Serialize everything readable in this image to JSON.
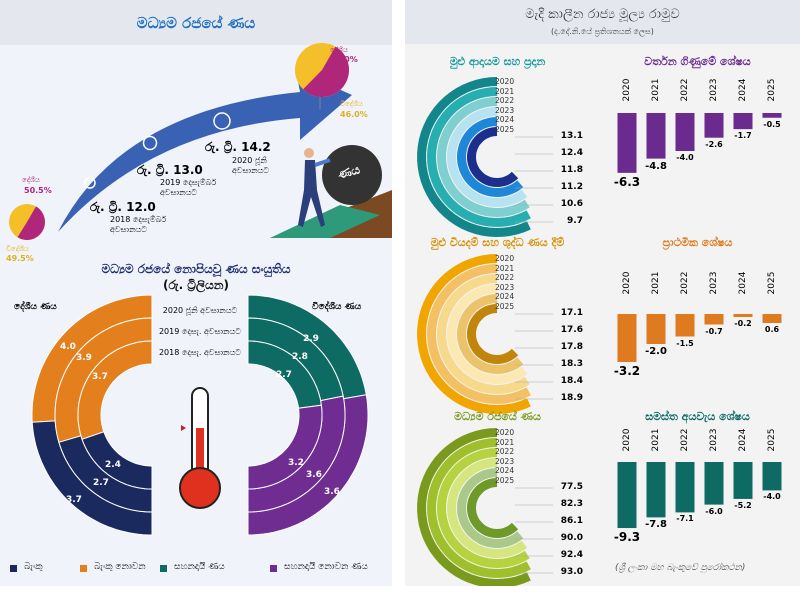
{
  "left": {
    "title": "මධ්‍යම රජයේ ණය",
    "pie_2018": {
      "domestic_label": "දේශීය",
      "domestic": "50.5%",
      "foreign_label": "විදේශීය",
      "foreign": "49.5%",
      "domestic_pct": 50.5
    },
    "pie_2020": {
      "domestic_label": "දේශීය",
      "domestic": "54.0%",
      "foreign_label": "විදේශීය",
      "foreign": "46.0%",
      "domestic_pct": 54.0
    },
    "milestones": [
      {
        "amount": "රු. ට්‍රි. 12.0",
        "date": "2018 දෙසැම්බර් අවසානයට"
      },
      {
        "amount": "රු. ට්‍රි. 13.0",
        "date": "2019 දෙසැම්බර් අවසානයට"
      },
      {
        "amount": "රු. ට්‍රි. 14.2",
        "date": "2020 ජූනි අවසානයට"
      }
    ],
    "boulder_text": "ණය",
    "composition": {
      "title": "මධ්‍යම රජයේ නොපියවූ ණය සංයුතිය",
      "subtitle": "(රු. ට්‍රිලියන)",
      "domestic_label": "දේශීය ණය",
      "foreign_label": "විදේශීය ණය",
      "periods": [
        "2020 ජූනි අවසානයට",
        "2019 දෙසැ. අවසානයට",
        "2018 දෙසැ. අවසානයට"
      ],
      "domestic": {
        "non_bank": [
          "4.0",
          "3.9",
          "3.7"
        ],
        "bank": [
          "3.7",
          "2.7",
          "2.4"
        ]
      },
      "foreign": {
        "concessional": [
          "2.9",
          "2.8",
          "2.7"
        ],
        "non_concessional": [
          "3.6",
          "3.6",
          "3.2"
        ]
      },
      "legend": [
        {
          "label": "බැංකු",
          "color": "#1b2a5e"
        },
        {
          "label": "බැංකු නොවන",
          "color": "#e37f1c"
        },
        {
          "label": "සහනදායී ණය",
          "color": "#0e6b63"
        },
        {
          "label": "සහනදායී නොවන ණය",
          "color": "#6f2c91"
        }
      ]
    }
  },
  "right": {
    "title": "මැදි කාලීන රාජ්‍ය මූල්‍ය රාමුව",
    "subtitle": "(ද.දේ.නි.යේ ප්‍රතිශතයක් ලෙස)",
    "source": "(ශ්‍රී ලංකා මහ බැංකුවේ පුරෝකථන)",
    "years": [
      "2020",
      "2021",
      "2022",
      "2023",
      "2024",
      "2025"
    ]
  },
  "chart_data": [
    {
      "type": "radial-bar",
      "title": "මුළු ආදායම සහ ප්‍රදාන",
      "categories": [
        "2020",
        "2021",
        "2022",
        "2023",
        "2024",
        "2025"
      ],
      "labels_top_to_bottom": [
        "13.1",
        "12.4",
        "11.8",
        "11.2",
        "10.6",
        "9.7"
      ],
      "colors": [
        "#13868c",
        "#27aeb0",
        "#7fcfd0",
        "#b7e3f0",
        "#1e88d8",
        "#1c2f8c"
      ],
      "title_color": "#1a9a9a"
    },
    {
      "type": "bar",
      "title": "වර්තන ගිණුමේ ශේෂය",
      "categories": [
        "2020",
        "2021",
        "2022",
        "2023",
        "2024",
        "2025"
      ],
      "values": [
        -6.3,
        -4.8,
        -4.0,
        -2.6,
        -1.7,
        -0.5
      ],
      "labels": [
        "-6.3",
        "-4.8",
        "-4.0",
        "-2.6",
        "-1.7",
        "-0.5"
      ],
      "color": "#6a2a8e"
    },
    {
      "type": "radial-bar",
      "title": "මුළු වියදම් සහ ශුද්ධ ණය දීම්",
      "categories": [
        "2020",
        "2021",
        "2022",
        "2023",
        "2024",
        "2025"
      ],
      "labels_top_to_bottom": [
        "17.1",
        "17.6",
        "17.8",
        "18.3",
        "18.4",
        "18.9"
      ],
      "colors": [
        "#f0a500",
        "#f3c064",
        "#f7d98c",
        "#fbe8b2",
        "#ecc36a",
        "#c0850a"
      ],
      "title_color": "#d4920a"
    },
    {
      "type": "bar",
      "title": "ප්‍රාථමික ශේෂය",
      "categories": [
        "2020",
        "2021",
        "2022",
        "2023",
        "2024",
        "2025"
      ],
      "values": [
        -3.2,
        -2.0,
        -1.5,
        -0.7,
        -0.2,
        0.6
      ],
      "labels": [
        "-3.2",
        "-2.0",
        "-1.5",
        "-0.7",
        "-0.2",
        "0.6"
      ],
      "color": "#e07a1f"
    },
    {
      "type": "radial-bar",
      "title": "මධ්‍යම රජයේ ණය",
      "categories": [
        "2020",
        "2021",
        "2022",
        "2023",
        "2024",
        "2025"
      ],
      "labels_top_to_bottom": [
        "77.5",
        "82.3",
        "86.1",
        "90.0",
        "92.4",
        "93.0"
      ],
      "colors": [
        "#7a9a1e",
        "#9fc02c",
        "#b6d23f",
        "#d6e67e",
        "#a9c88a",
        "#6e9a2a"
      ],
      "title_color": "#7a9a1e"
    },
    {
      "type": "bar",
      "title": "සමස්ත අයවැය ශේෂය",
      "categories": [
        "2020",
        "2021",
        "2022",
        "2023",
        "2024",
        "2025"
      ],
      "values": [
        -9.3,
        -7.8,
        -7.1,
        -6.0,
        -5.2,
        -4.0
      ],
      "labels": [
        "-9.3",
        "-7.8",
        "-7.1",
        "-6.0",
        "-5.2",
        "-4.0"
      ],
      "color": "#0e6b63"
    }
  ]
}
